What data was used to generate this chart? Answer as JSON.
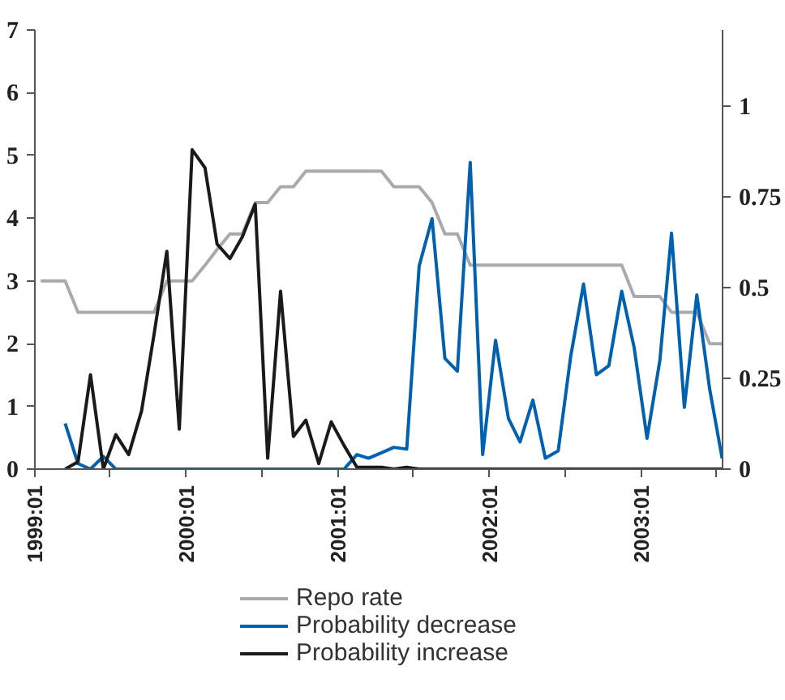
{
  "chart_data": {
    "type": "line",
    "x": [
      "1999-01-15",
      "1999-02-15",
      "1999-03-15",
      "1999-04-15",
      "1999-05-15",
      "1999-06-15",
      "1999-07-15",
      "1999-08-15",
      "1999-09-15",
      "1999-10-15",
      "1999-11-15",
      "1999-12-15",
      "2000-01-15",
      "2000-02-15",
      "2000-03-15",
      "2000-04-15",
      "2000-05-15",
      "2000-06-15",
      "2000-07-15",
      "2000-08-15",
      "2000-09-15",
      "2000-10-15",
      "2000-11-15",
      "2000-12-15",
      "2001-01-15",
      "2001-02-15",
      "2001-03-15",
      "2001-04-15",
      "2001-05-15",
      "2001-06-15",
      "2001-07-15",
      "2001-08-15",
      "2001-09-15",
      "2001-10-15",
      "2001-11-15",
      "2001-12-15",
      "2002-01-15",
      "2002-02-15",
      "2002-03-15",
      "2002-04-15",
      "2002-05-15",
      "2002-06-15",
      "2002-07-15",
      "2002-08-15",
      "2002-09-15",
      "2002-10-15",
      "2002-11-15",
      "2002-12-15",
      "2003-01-15",
      "2003-02-15",
      "2003-03-15",
      "2003-04-15",
      "2003-05-15",
      "2003-06-15",
      "2003-07-15"
    ],
    "series": [
      {
        "name": "Repo rate",
        "color": "#a8abae",
        "values": [
          3.0,
          3.0,
          3.0,
          2.5,
          2.5,
          2.5,
          2.5,
          2.5,
          2.5,
          2.5,
          3.0,
          3.0,
          3.0,
          3.25,
          3.5,
          3.75,
          3.75,
          4.25,
          4.25,
          4.5,
          4.5,
          4.75,
          4.75,
          4.75,
          4.75,
          4.75,
          4.75,
          4.75,
          4.5,
          4.5,
          4.5,
          4.25,
          3.75,
          3.75,
          3.25,
          3.25,
          3.25,
          3.25,
          3.25,
          3.25,
          3.25,
          3.25,
          3.25,
          3.25,
          3.25,
          3.25,
          3.25,
          2.75,
          2.75,
          2.75,
          2.5,
          2.5,
          2.5,
          2.0,
          2.0
        ]
      },
      {
        "name": "Probability decrease",
        "color": "#0061b0",
        "axis": "y2",
        "values": [
          null,
          null,
          0.126,
          0.015,
          0,
          0.035,
          0,
          0,
          0,
          0,
          0,
          0,
          0,
          0,
          0,
          0,
          0,
          0,
          0,
          0,
          0,
          0,
          0,
          0,
          0,
          0.04,
          0.03,
          0.045,
          0.06,
          0.055,
          0.56,
          0.69,
          0.305,
          0.27,
          0.845,
          0.04,
          0.355,
          0.14,
          0.075,
          0.19,
          0.03,
          0.05,
          0.31,
          0.51,
          0.26,
          0.285,
          0.49,
          0.335,
          0.085,
          0.3,
          0.65,
          0.17,
          0.48,
          0.22,
          0.03
        ]
      },
      {
        "name": "Probability increase",
        "color": "#1a1a1a",
        "axis": "y2",
        "values": [
          null,
          null,
          0,
          0.02,
          0.26,
          0,
          0.095,
          0.04,
          0.16,
          0.37,
          0.6,
          0.11,
          0.88,
          0.83,
          0.62,
          0.58,
          0.64,
          0.73,
          0.03,
          0.49,
          0.09,
          0.135,
          0.015,
          0.13,
          0.065,
          0.005,
          0.005,
          0.005,
          0,
          0.005,
          0,
          0,
          0,
          0,
          0,
          0,
          0,
          0,
          0,
          0,
          0,
          0,
          0,
          0,
          0,
          0,
          0,
          0,
          0,
          0,
          0,
          0,
          0,
          0,
          0
        ]
      }
    ],
    "xlim": [
      "1999-01-01",
      "2003-07-16"
    ],
    "xticks": [
      {
        "value": "1999-01-01",
        "label": "1999:01"
      },
      {
        "value": "1999-07-01",
        "label": null
      },
      {
        "value": "2000-01-01",
        "label": "2000:01"
      },
      {
        "value": "2000-07-01",
        "label": null
      },
      {
        "value": "2001-01-01",
        "label": "2001:01"
      },
      {
        "value": "2001-07-01",
        "label": null
      },
      {
        "value": "2002-01-01",
        "label": "2002:01"
      },
      {
        "value": "2002-07-01",
        "label": null
      },
      {
        "value": "2003-01-01",
        "label": "2003:01"
      },
      {
        "value": "2003-07-01",
        "label": null
      }
    ],
    "ylim": [
      0,
      7
    ],
    "yticks": [
      0,
      1,
      2,
      3,
      4,
      5,
      6,
      7
    ],
    "y2lim": [
      0,
      1.21
    ],
    "y2ticks": [
      0,
      0.25,
      0.5,
      0.75,
      1
    ],
    "grid": false,
    "legend": "bottom",
    "line_style": "solid"
  }
}
